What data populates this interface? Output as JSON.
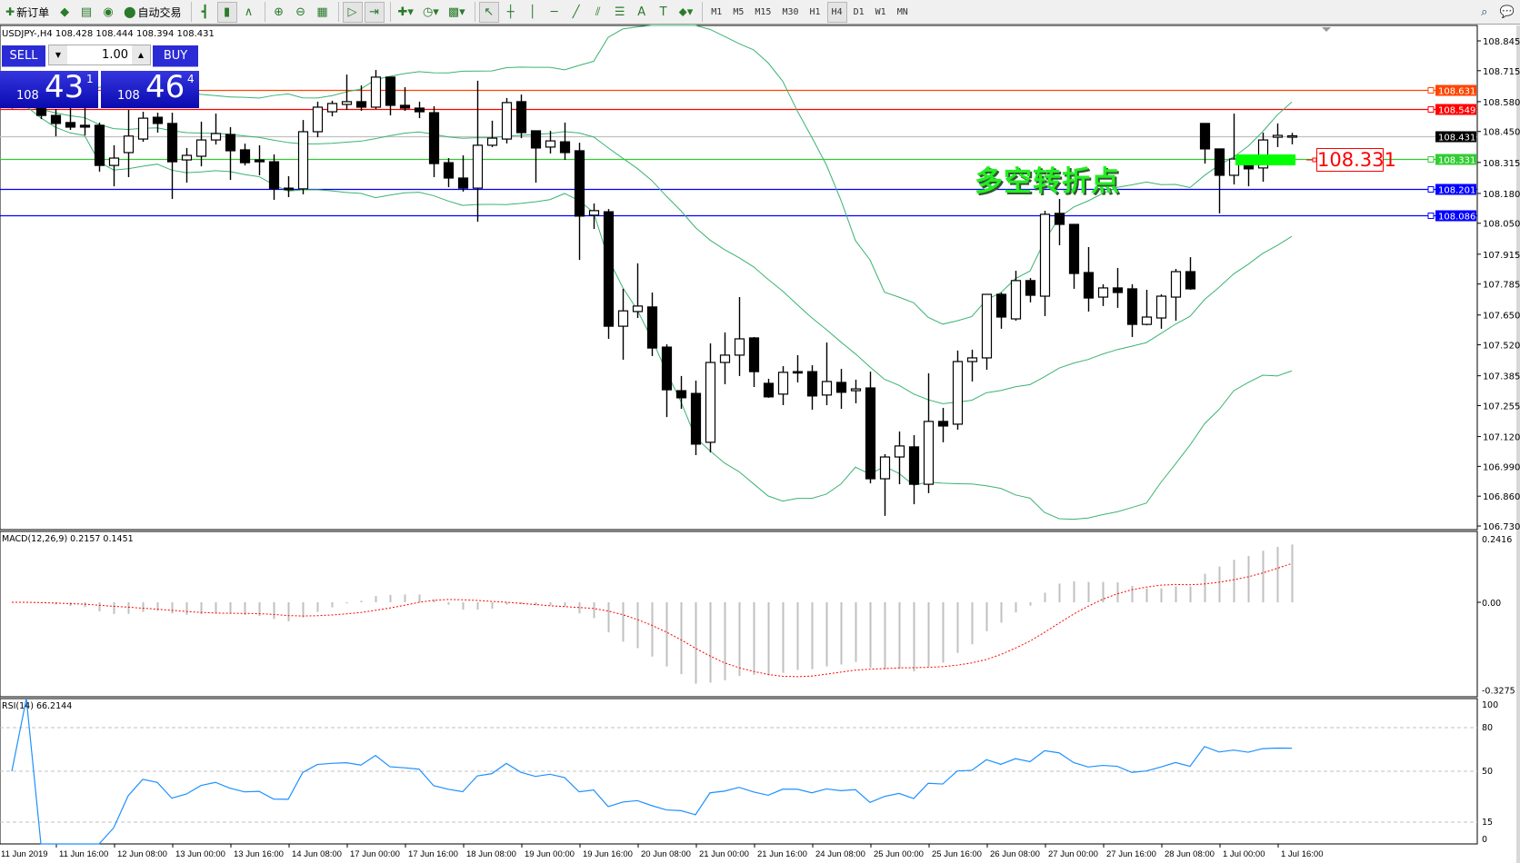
{
  "toolbar": {
    "items": [
      {
        "name": "new-order-button",
        "glyph": "✚",
        "label": "新订单"
      },
      {
        "name": "market-watch-icon",
        "glyph": "◆"
      },
      {
        "name": "navigator-icon",
        "glyph": "▤"
      },
      {
        "name": "signals-icon",
        "glyph": "◉"
      },
      {
        "name": "auto-trading-button",
        "glyph": "⬤",
        "label": "自动交易"
      },
      {
        "sep": true
      },
      {
        "name": "bar-chart-icon",
        "glyph": "┫"
      },
      {
        "name": "candlestick-chart-icon",
        "glyph": "▮",
        "active": true
      },
      {
        "name": "line-chart-icon",
        "glyph": "∧"
      },
      {
        "sep": true
      },
      {
        "name": "zoom-in-icon",
        "glyph": "⊕"
      },
      {
        "name": "zoom-out-icon",
        "glyph": "⊖"
      },
      {
        "name": "tile-windows-icon",
        "glyph": "▦"
      },
      {
        "sep": true
      },
      {
        "name": "auto-scroll-icon",
        "glyph": "▷",
        "active": true
      },
      {
        "name": "chart-shift-icon",
        "glyph": "⇥",
        "active": true
      },
      {
        "sep": true
      },
      {
        "name": "indicators-icon",
        "glyph": "✚▾"
      },
      {
        "name": "periods-icon",
        "glyph": "◷▾"
      },
      {
        "name": "templates-icon",
        "glyph": "▩▾"
      },
      {
        "sep": true
      },
      {
        "name": "cursor-icon",
        "glyph": "↖",
        "active": true
      },
      {
        "name": "crosshair-icon",
        "glyph": "┼"
      },
      {
        "name": "vertical-line-icon",
        "glyph": "│"
      },
      {
        "name": "horizontal-line-icon",
        "glyph": "─"
      },
      {
        "name": "trendline-icon",
        "glyph": "╱"
      },
      {
        "name": "channel-icon",
        "glyph": "⫽"
      },
      {
        "name": "fibonacci-icon",
        "glyph": "☰"
      },
      {
        "name": "text-icon",
        "glyph": "A"
      },
      {
        "name": "text-label-icon",
        "glyph": "T"
      },
      {
        "name": "arrows-icon",
        "glyph": "⬥▾"
      },
      {
        "sep": true
      }
    ],
    "timeframes": [
      "M1",
      "M5",
      "M15",
      "M30",
      "H1",
      "H4",
      "D1",
      "W1",
      "MN"
    ],
    "active_timeframe": "H4"
  },
  "symbol_header": "USDJPY-,H4  108.428 108.444 108.394 108.431",
  "trade_panel": {
    "sell_label": "SELL",
    "buy_label": "BUY",
    "lot": "1.00",
    "sell_price": {
      "prefix": "108",
      "big": "43",
      "sup": "1"
    },
    "buy_price": {
      "prefix": "108",
      "big": "46",
      "sup": "4"
    }
  },
  "annotation": {
    "text": "多空转折点",
    "price_label": "108.331"
  },
  "colors": {
    "bull_body": "#ffffff",
    "bear_body": "#000000",
    "bands": "#3cb371",
    "macd_bars": "#c0c0c0",
    "macd_signal": "#ff0000",
    "rsi": "#1e90ff",
    "highlight": "#00ff00"
  },
  "chart_data": {
    "type": "candlestick",
    "symbol": "USDJPY-",
    "timeframe": "H4",
    "ylim": [
      106.73,
      108.845
    ],
    "price_ticks": [
      "108.845",
      "108.715",
      "108.580",
      "108.450",
      "108.315",
      "108.180",
      "108.050",
      "107.915",
      "107.785",
      "107.650",
      "107.520",
      "107.385",
      "107.255",
      "107.120",
      "106.990",
      "106.860",
      "106.730"
    ],
    "hlines": [
      {
        "price": 108.631,
        "label": "108.631",
        "color": "#ff4500"
      },
      {
        "price": 108.549,
        "label": "108.549",
        "color": "#ff0000"
      },
      {
        "price": 108.431,
        "label": "108.431",
        "color": "#c0c0c0",
        "label_bg": "#000000"
      },
      {
        "price": 108.331,
        "label": "108.331",
        "color": "#32cd32"
      },
      {
        "price": 108.201,
        "label": "108.201",
        "color": "#0000ff"
      },
      {
        "price": 108.086,
        "label": "108.086",
        "color": "#0000ff"
      }
    ],
    "time_labels": [
      "11 Jun 2019",
      "11 Jun 16:00",
      "12 Jun 08:00",
      "13 Jun 00:00",
      "13 Jun 16:00",
      "14 Jun 08:00",
      "17 Jun 00:00",
      "17 Jun 16:00",
      "18 Jun 08:00",
      "19 Jun 00:00",
      "19 Jun 16:00",
      "20 Jun 08:00",
      "21 Jun 00:00",
      "21 Jun 16:00",
      "24 Jun 08:00",
      "25 Jun 00:00",
      "25 Jun 16:00",
      "26 Jun 08:00",
      "27 Jun 00:00",
      "27 Jun 16:00",
      "28 Jun 08:00",
      "1 Jul 00:00",
      "1 Jul 16:00"
    ],
    "candles_ohlc": [
      [
        108.56,
        108.57,
        108.55,
        108.56
      ],
      [
        108.56,
        108.565,
        108.555,
        108.56
      ],
      [
        108.567,
        108.57,
        108.504,
        108.52
      ],
      [
        108.52,
        108.548,
        108.429,
        108.485
      ],
      [
        108.489,
        108.56,
        108.457,
        108.469
      ],
      [
        108.477,
        108.556,
        108.433,
        108.469
      ],
      [
        108.477,
        108.489,
        108.275,
        108.302
      ],
      [
        108.302,
        108.39,
        108.211,
        108.334
      ],
      [
        108.358,
        108.544,
        108.251,
        108.43
      ],
      [
        108.417,
        108.536,
        108.405,
        108.508
      ],
      [
        108.512,
        108.532,
        108.445,
        108.485
      ],
      [
        108.485,
        108.532,
        108.156,
        108.318
      ],
      [
        108.326,
        108.378,
        108.227,
        108.346
      ],
      [
        108.342,
        108.493,
        108.298,
        108.413
      ],
      [
        108.413,
        108.528,
        108.393,
        108.441
      ],
      [
        108.437,
        108.469,
        108.239,
        108.366
      ],
      [
        108.37,
        108.397,
        108.302,
        108.314
      ],
      [
        108.326,
        108.39,
        108.259,
        108.318
      ],
      [
        108.318,
        108.35,
        108.152,
        108.2
      ],
      [
        108.203,
        108.255,
        108.164,
        108.196
      ],
      [
        108.2,
        108.5,
        108.176,
        108.449
      ],
      [
        108.449,
        108.58,
        108.425,
        108.556
      ],
      [
        108.536,
        108.584,
        108.516,
        108.572
      ],
      [
        108.568,
        108.698,
        108.544,
        108.58
      ],
      [
        108.58,
        108.651,
        108.54,
        108.556
      ],
      [
        108.556,
        108.718,
        108.548,
        108.687
      ],
      [
        108.687,
        108.687,
        108.52,
        108.564
      ],
      [
        108.564,
        108.643,
        108.54,
        108.552
      ],
      [
        108.552,
        108.58,
        108.508,
        108.536
      ],
      [
        108.532,
        108.56,
        108.251,
        108.31
      ],
      [
        108.314,
        108.334,
        108.207,
        108.247
      ],
      [
        108.247,
        108.346,
        108.188,
        108.203
      ],
      [
        108.203,
        108.671,
        108.057,
        108.39
      ],
      [
        108.39,
        108.497,
        108.382,
        108.421
      ],
      [
        108.417,
        108.596,
        108.398,
        108.576
      ],
      [
        108.58,
        108.611,
        108.421,
        108.445
      ],
      [
        108.453,
        108.453,
        108.227,
        108.378
      ],
      [
        108.382,
        108.453,
        108.354,
        108.409
      ],
      [
        108.405,
        108.489,
        108.326,
        108.358
      ],
      [
        108.366,
        108.401,
        107.89,
        108.081
      ],
      [
        108.085,
        108.136,
        108.025,
        108.105
      ],
      [
        108.1,
        108.112,
        107.546,
        107.601
      ],
      [
        107.601,
        107.764,
        107.455,
        107.668
      ],
      [
        107.665,
        107.875,
        107.637,
        107.689
      ],
      [
        107.685,
        107.748,
        107.471,
        107.506
      ],
      [
        107.51,
        107.522,
        107.205,
        107.324
      ],
      [
        107.32,
        107.384,
        107.241,
        107.289
      ],
      [
        107.308,
        107.364,
        107.039,
        107.087
      ],
      [
        107.095,
        107.526,
        107.051,
        107.443
      ],
      [
        107.443,
        107.574,
        107.348,
        107.475
      ],
      [
        107.475,
        107.728,
        107.384,
        107.546
      ],
      [
        107.55,
        107.554,
        107.336,
        107.403
      ],
      [
        107.352,
        107.372,
        107.289,
        107.293
      ],
      [
        107.305,
        107.427,
        107.257,
        107.4
      ],
      [
        107.403,
        107.475,
        107.356,
        107.4
      ],
      [
        107.403,
        107.431,
        107.237,
        107.297
      ],
      [
        107.301,
        107.53,
        107.257,
        107.36
      ],
      [
        107.356,
        107.415,
        107.241,
        107.313
      ],
      [
        107.32,
        107.368,
        107.265,
        107.328
      ],
      [
        107.332,
        107.403,
        106.916,
        106.936
      ],
      [
        106.936,
        107.043,
        106.774,
        107.031
      ],
      [
        107.031,
        107.142,
        106.912,
        107.079
      ],
      [
        107.075,
        107.126,
        106.825,
        106.912
      ],
      [
        106.912,
        107.396,
        106.873,
        107.186
      ],
      [
        107.186,
        107.245,
        107.095,
        107.166
      ],
      [
        107.174,
        107.495,
        107.15,
        107.447
      ],
      [
        107.447,
        107.499,
        107.36,
        107.463
      ],
      [
        107.463,
        107.74,
        107.411,
        107.74
      ],
      [
        107.74,
        107.748,
        107.59,
        107.641
      ],
      [
        107.633,
        107.843,
        107.625,
        107.8
      ],
      [
        107.8,
        107.811,
        107.705,
        107.736
      ],
      [
        107.732,
        108.104,
        107.645,
        108.089
      ],
      [
        108.093,
        108.156,
        107.954,
        108.045
      ],
      [
        108.045,
        108.045,
        107.764,
        107.831
      ],
      [
        107.835,
        107.946,
        107.665,
        107.724
      ],
      [
        107.728,
        107.784,
        107.689,
        107.768
      ],
      [
        107.768,
        107.855,
        107.681,
        107.748
      ],
      [
        107.764,
        107.784,
        107.554,
        107.609
      ],
      [
        107.609,
        107.76,
        107.605,
        107.641
      ],
      [
        107.637,
        107.74,
        107.59,
        107.732
      ],
      [
        107.728,
        107.851,
        107.625,
        107.839
      ],
      [
        107.839,
        107.902,
        107.76,
        107.764
      ],
      [
        108.485,
        108.485,
        108.31,
        108.374
      ],
      [
        108.374,
        108.374,
        108.093,
        108.259
      ],
      [
        108.259,
        108.528,
        108.219,
        108.33
      ],
      [
        108.33,
        108.346,
        108.211,
        108.287
      ],
      [
        108.291,
        108.445,
        108.231,
        108.413
      ],
      [
        108.425,
        108.485,
        108.382,
        108.433
      ],
      [
        108.428,
        108.444,
        108.394,
        108.431
      ]
    ],
    "bollinger": {
      "period": 20,
      "deviation": 2
    },
    "macd": {
      "header": "MACD(12,26,9) 0.2157 0.1451",
      "ylim": [
        -0.3275,
        0.2416
      ],
      "ticks": [
        "0.2416",
        "0.00",
        "-0.3275"
      ]
    },
    "rsi": {
      "header": "RSI(14) 66.2144",
      "levels": [
        80,
        50,
        15
      ],
      "ticks": [
        "100",
        "80",
        "50",
        "15",
        "0"
      ]
    }
  }
}
